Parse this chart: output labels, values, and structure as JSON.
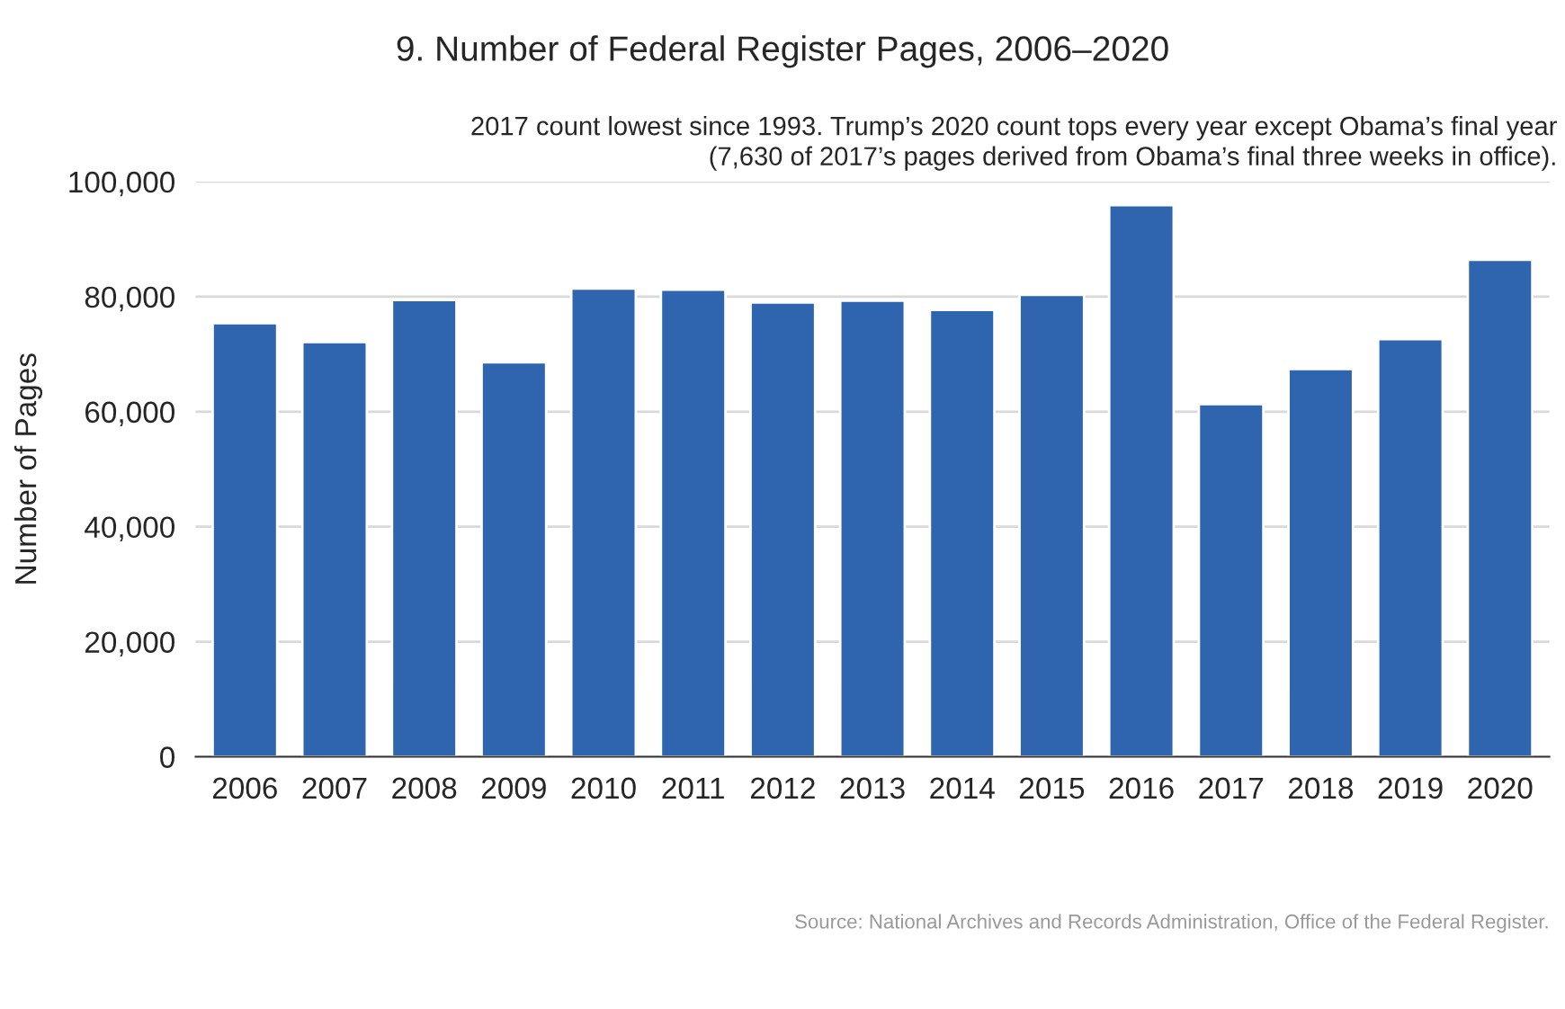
{
  "chart_data": {
    "type": "bar",
    "title": "9. Number of Federal Register Pages, 2006–2020",
    "ylabel": "Number of Pages",
    "categories": [
      "2006",
      "2007",
      "2008",
      "2009",
      "2010",
      "2011",
      "2012",
      "2013",
      "2014",
      "2015",
      "2016",
      "2017",
      "2018",
      "2019",
      "2020"
    ],
    "values": [
      75400,
      72100,
      79400,
      68600,
      81400,
      81200,
      79000,
      79300,
      77700,
      80300,
      95900,
      61300,
      67400,
      72600,
      86400
    ],
    "color": "#2e65ae",
    "ylim": [
      0,
      100000
    ],
    "yticks": [
      {
        "value": 0,
        "label": "0"
      },
      {
        "value": 20000,
        "label": "20,000"
      },
      {
        "value": 40000,
        "label": "40,000"
      },
      {
        "value": 60000,
        "label": "60,000"
      },
      {
        "value": 80000,
        "label": "80,000"
      },
      {
        "value": 100000,
        "label": "100,000"
      }
    ],
    "grid": "y",
    "annotations": [
      "2017 count lowest since 1993. Trump’s 2020 count tops every year except Obama’s final year\n(7,630 of 2017’s pages derived from Obama’s final three weeks in office).",
      "Source: National Archives and Records Administration, Office of the Federal Register."
    ]
  }
}
